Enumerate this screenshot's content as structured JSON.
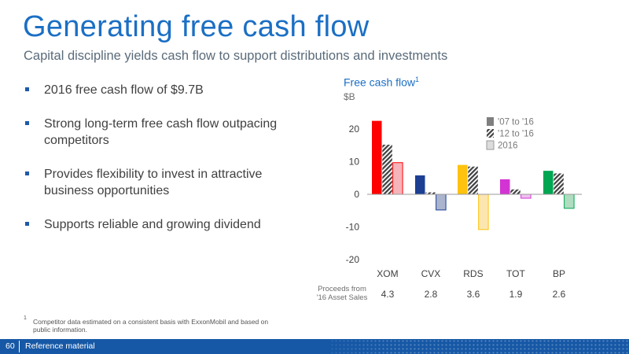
{
  "header": {
    "title": "Generating free cash flow",
    "subtitle": "Capital discipline yields cash flow to support distributions and investments"
  },
  "bullets": [
    "2016 free cash flow of $9.7B",
    "Strong long-term free cash flow outpacing competitors",
    "Provides flexibility to invest in attractive business opportunities",
    "Supports reliable and growing dividend"
  ],
  "chart_data": {
    "type": "bar",
    "title": "Free cash flow",
    "title_footnote_mark": "1",
    "unit": "$B",
    "categories": [
      "XOM",
      "CVX",
      "RDS",
      "TOT",
      "BP"
    ],
    "series": [
      {
        "name": "'07 to '16",
        "fill": "solid",
        "values": [
          22.5,
          5.8,
          9.0,
          4.6,
          7.2
        ]
      },
      {
        "name": "'12 to '16",
        "fill": "hatched",
        "values": [
          15.2,
          0.6,
          8.5,
          1.5,
          6.4
        ]
      },
      {
        "name": "2016",
        "fill": "light",
        "values": [
          9.7,
          -4.8,
          -10.8,
          -1.2,
          -4.3
        ]
      }
    ],
    "category_colors": [
      "#ff0000",
      "#1c3f94",
      "#ffc20e",
      "#d333d3",
      "#00a651"
    ],
    "category_light_colors": [
      "#f6b3b9",
      "#aab4cc",
      "#fce6b0",
      "#f0c0f0",
      "#b0dcc0"
    ],
    "yticks": [
      20,
      10,
      0,
      -10,
      -20
    ],
    "ylim": [
      -20,
      25
    ],
    "legend_position": "top-right",
    "proceeds": {
      "label_line1": "Proceeds from",
      "label_line2": "'16 Asset Sales",
      "values": [
        "4.3",
        "2.8",
        "3.6",
        "1.9",
        "2.6"
      ]
    }
  },
  "footnote": {
    "mark": "1",
    "text": "Competitor data estimated on a consistent basis with ExxonMobil and based on public information."
  },
  "footer": {
    "page_number": "60",
    "label": "Reference material"
  }
}
